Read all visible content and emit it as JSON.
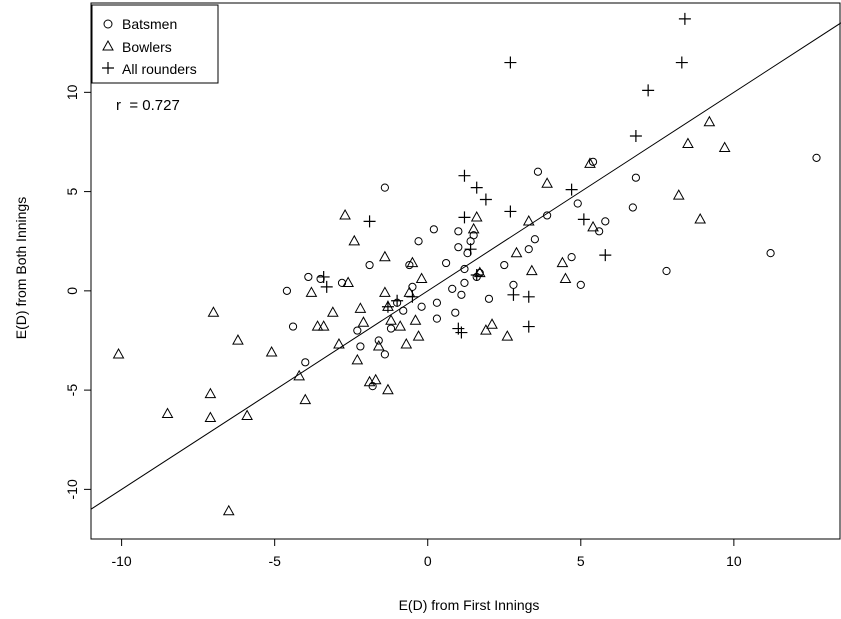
{
  "chart_data": {
    "type": "scatter",
    "title": "",
    "xlabel": "E(D) from First Innings",
    "ylabel": "E(D) from Both Innings",
    "xlim": [
      -11,
      13.5
    ],
    "ylim": [
      -12.5,
      14.5
    ],
    "x_ticks": [
      -10,
      -5,
      0,
      5,
      10
    ],
    "y_ticks": [
      -10,
      -5,
      0,
      5,
      10
    ],
    "grid": false,
    "legend_position": "top-left",
    "legend": [
      {
        "label": "Batsmen",
        "marker": "circle"
      },
      {
        "label": "Bowlers",
        "marker": "triangle"
      },
      {
        "label": "All rounders",
        "marker": "plus"
      }
    ],
    "annotation": "r  = 0.727",
    "fit_line": {
      "slope": 1.0,
      "intercept": 0.0
    },
    "series": [
      {
        "name": "Batsmen",
        "marker": "circle",
        "points": [
          [
            -4.6,
            0.0
          ],
          [
            -4.4,
            -1.8
          ],
          [
            -4.0,
            -3.6
          ],
          [
            -3.9,
            0.7
          ],
          [
            -3.5,
            0.6
          ],
          [
            -2.8,
            0.4
          ],
          [
            -2.3,
            -2.0
          ],
          [
            -2.2,
            -2.8
          ],
          [
            -1.9,
            1.3
          ],
          [
            -1.8,
            -4.8
          ],
          [
            -1.6,
            -2.5
          ],
          [
            -1.4,
            5.2
          ],
          [
            -1.4,
            -3.2
          ],
          [
            -1.2,
            -1.9
          ],
          [
            -1.0,
            -0.6
          ],
          [
            -0.8,
            -1.0
          ],
          [
            -0.6,
            1.3
          ],
          [
            -0.5,
            0.2
          ],
          [
            -0.3,
            2.5
          ],
          [
            -0.2,
            -0.8
          ],
          [
            0.2,
            3.1
          ],
          [
            0.3,
            -1.4
          ],
          [
            0.3,
            -0.6
          ],
          [
            0.6,
            1.4
          ],
          [
            0.8,
            0.1
          ],
          [
            0.9,
            -1.1
          ],
          [
            1.0,
            3.0
          ],
          [
            1.0,
            2.2
          ],
          [
            1.1,
            -0.2
          ],
          [
            1.2,
            0.4
          ],
          [
            1.2,
            1.1
          ],
          [
            1.3,
            1.9
          ],
          [
            1.4,
            2.5
          ],
          [
            1.5,
            2.8
          ],
          [
            1.6,
            0.7
          ],
          [
            1.7,
            0.9
          ],
          [
            2.0,
            -0.4
          ],
          [
            2.5,
            1.3
          ],
          [
            2.8,
            0.3
          ],
          [
            3.3,
            2.1
          ],
          [
            3.5,
            2.6
          ],
          [
            3.6,
            6.0
          ],
          [
            3.9,
            3.8
          ],
          [
            4.7,
            1.7
          ],
          [
            4.9,
            4.4
          ],
          [
            5.0,
            0.3
          ],
          [
            5.4,
            6.5
          ],
          [
            5.6,
            3.0
          ],
          [
            5.8,
            3.5
          ],
          [
            6.7,
            4.2
          ],
          [
            6.8,
            5.7
          ],
          [
            7.8,
            1.0
          ],
          [
            11.2,
            1.9
          ],
          [
            12.7,
            6.7
          ]
        ]
      },
      {
        "name": "Bowlers",
        "marker": "triangle",
        "points": [
          [
            -10.1,
            -3.2
          ],
          [
            -8.5,
            -6.2
          ],
          [
            -7.1,
            -6.4
          ],
          [
            -7.1,
            -5.2
          ],
          [
            -7.0,
            -1.1
          ],
          [
            -6.5,
            -11.1
          ],
          [
            -6.2,
            -2.5
          ],
          [
            -5.9,
            -6.3
          ],
          [
            -5.1,
            -3.1
          ],
          [
            -4.2,
            -4.3
          ],
          [
            -4.0,
            -5.5
          ],
          [
            -3.8,
            -0.1
          ],
          [
            -3.6,
            -1.8
          ],
          [
            -3.4,
            -1.8
          ],
          [
            -3.1,
            -1.1
          ],
          [
            -2.9,
            -2.7
          ],
          [
            -2.7,
            3.8
          ],
          [
            -2.6,
            0.4
          ],
          [
            -2.4,
            2.5
          ],
          [
            -2.3,
            -3.5
          ],
          [
            -2.2,
            -0.9
          ],
          [
            -2.1,
            -1.6
          ],
          [
            -1.9,
            -4.6
          ],
          [
            -1.7,
            -4.5
          ],
          [
            -1.6,
            -2.8
          ],
          [
            -1.4,
            -0.1
          ],
          [
            -1.4,
            1.7
          ],
          [
            -1.3,
            -0.8
          ],
          [
            -1.3,
            -5.0
          ],
          [
            -1.2,
            -1.5
          ],
          [
            -0.9,
            -1.8
          ],
          [
            -0.7,
            -2.7
          ],
          [
            -0.6,
            -0.1
          ],
          [
            -0.5,
            1.4
          ],
          [
            -0.4,
            -1.5
          ],
          [
            -0.3,
            -2.3
          ],
          [
            -0.2,
            0.6
          ],
          [
            1.5,
            3.1
          ],
          [
            1.6,
            3.7
          ],
          [
            1.7,
            0.9
          ],
          [
            1.9,
            -2.0
          ],
          [
            2.1,
            -1.7
          ],
          [
            2.6,
            -2.3
          ],
          [
            2.9,
            1.9
          ],
          [
            3.3,
            3.5
          ],
          [
            3.4,
            1.0
          ],
          [
            3.9,
            5.4
          ],
          [
            4.4,
            1.4
          ],
          [
            4.5,
            0.6
          ],
          [
            5.3,
            6.4
          ],
          [
            5.4,
            3.2
          ],
          [
            8.2,
            4.8
          ],
          [
            8.5,
            7.4
          ],
          [
            8.9,
            3.6
          ],
          [
            9.2,
            8.5
          ],
          [
            9.7,
            7.2
          ]
        ]
      },
      {
        "name": "All rounders",
        "marker": "plus",
        "points": [
          [
            -3.4,
            0.7
          ],
          [
            -3.3,
            0.2
          ],
          [
            -1.9,
            3.5
          ],
          [
            -1.3,
            -0.8
          ],
          [
            -1.0,
            -0.5
          ],
          [
            -0.5,
            -0.3
          ],
          [
            1.0,
            -1.9
          ],
          [
            1.1,
            -2.1
          ],
          [
            1.2,
            5.8
          ],
          [
            1.2,
            3.7
          ],
          [
            1.4,
            2.1
          ],
          [
            1.6,
            0.8
          ],
          [
            1.6,
            5.2
          ],
          [
            1.9,
            4.6
          ],
          [
            2.7,
            11.5
          ],
          [
            2.7,
            4.0
          ],
          [
            2.8,
            -0.2
          ],
          [
            3.3,
            -0.3
          ],
          [
            3.3,
            -1.8
          ],
          [
            4.7,
            5.1
          ],
          [
            5.1,
            3.6
          ],
          [
            5.8,
            1.8
          ],
          [
            6.8,
            7.8
          ],
          [
            7.2,
            10.1
          ],
          [
            8.3,
            11.5
          ],
          [
            8.4,
            13.7
          ]
        ]
      }
    ]
  }
}
